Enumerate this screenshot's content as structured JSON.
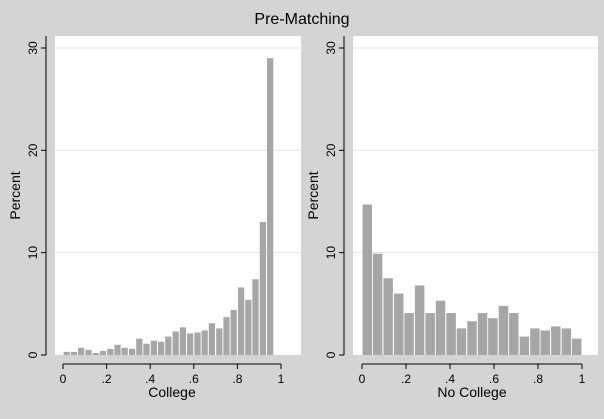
{
  "title": "Pre-Matching",
  "chart_data": [
    {
      "type": "bar",
      "xlabel": "College",
      "ylabel": "Percent",
      "xlim": [
        0,
        1
      ],
      "ylim": [
        0,
        30
      ],
      "xticks": [
        "0",
        ".2",
        ".4",
        ".6",
        ".8",
        "1"
      ],
      "yticks": [
        "0",
        "10",
        "20",
        "30"
      ],
      "grid": true,
      "bin_width": 0.0333,
      "bins": [
        {
          "x": 0.017,
          "value": 0.3
        },
        {
          "x": 0.05,
          "value": 0.3
        },
        {
          "x": 0.083,
          "value": 0.7
        },
        {
          "x": 0.117,
          "value": 0.5
        },
        {
          "x": 0.15,
          "value": 0.2
        },
        {
          "x": 0.183,
          "value": 0.4
        },
        {
          "x": 0.217,
          "value": 0.6
        },
        {
          "x": 0.25,
          "value": 1.0
        },
        {
          "x": 0.283,
          "value": 0.7
        },
        {
          "x": 0.317,
          "value": 0.6
        },
        {
          "x": 0.35,
          "value": 1.6
        },
        {
          "x": 0.383,
          "value": 1.1
        },
        {
          "x": 0.417,
          "value": 1.4
        },
        {
          "x": 0.45,
          "value": 1.3
        },
        {
          "x": 0.483,
          "value": 1.8
        },
        {
          "x": 0.517,
          "value": 2.3
        },
        {
          "x": 0.55,
          "value": 2.7
        },
        {
          "x": 0.583,
          "value": 2.1
        },
        {
          "x": 0.617,
          "value": 2.2
        },
        {
          "x": 0.65,
          "value": 2.4
        },
        {
          "x": 0.683,
          "value": 3.1
        },
        {
          "x": 0.717,
          "value": 2.6
        },
        {
          "x": 0.75,
          "value": 3.7
        },
        {
          "x": 0.783,
          "value": 4.4
        },
        {
          "x": 0.817,
          "value": 6.6
        },
        {
          "x": 0.85,
          "value": 5.4
        },
        {
          "x": 0.883,
          "value": 7.4
        },
        {
          "x": 0.917,
          "value": 13.0
        },
        {
          "x": 0.95,
          "value": 29.0
        }
      ]
    },
    {
      "type": "bar",
      "xlabel": "No College",
      "ylabel": "Percent",
      "xlim": [
        0,
        1
      ],
      "ylim": [
        0,
        30
      ],
      "xticks": [
        "0",
        ".2",
        ".4",
        ".6",
        ".8",
        "1"
      ],
      "yticks": [
        "0",
        "10",
        "20",
        "30"
      ],
      "grid": true,
      "bin_width": 0.0476,
      "bins": [
        {
          "x": 0.024,
          "value": 14.7
        },
        {
          "x": 0.071,
          "value": 9.9
        },
        {
          "x": 0.119,
          "value": 7.5
        },
        {
          "x": 0.167,
          "value": 6.0
        },
        {
          "x": 0.214,
          "value": 4.1
        },
        {
          "x": 0.262,
          "value": 6.8
        },
        {
          "x": 0.31,
          "value": 4.1
        },
        {
          "x": 0.357,
          "value": 5.3
        },
        {
          "x": 0.405,
          "value": 4.1
        },
        {
          "x": 0.452,
          "value": 2.6
        },
        {
          "x": 0.5,
          "value": 3.3
        },
        {
          "x": 0.548,
          "value": 4.1
        },
        {
          "x": 0.595,
          "value": 3.6
        },
        {
          "x": 0.643,
          "value": 4.8
        },
        {
          "x": 0.69,
          "value": 4.1
        },
        {
          "x": 0.738,
          "value": 1.8
        },
        {
          "x": 0.786,
          "value": 2.6
        },
        {
          "x": 0.833,
          "value": 2.4
        },
        {
          "x": 0.881,
          "value": 2.8
        },
        {
          "x": 0.929,
          "value": 2.6
        },
        {
          "x": 0.976,
          "value": 1.6
        }
      ]
    }
  ]
}
